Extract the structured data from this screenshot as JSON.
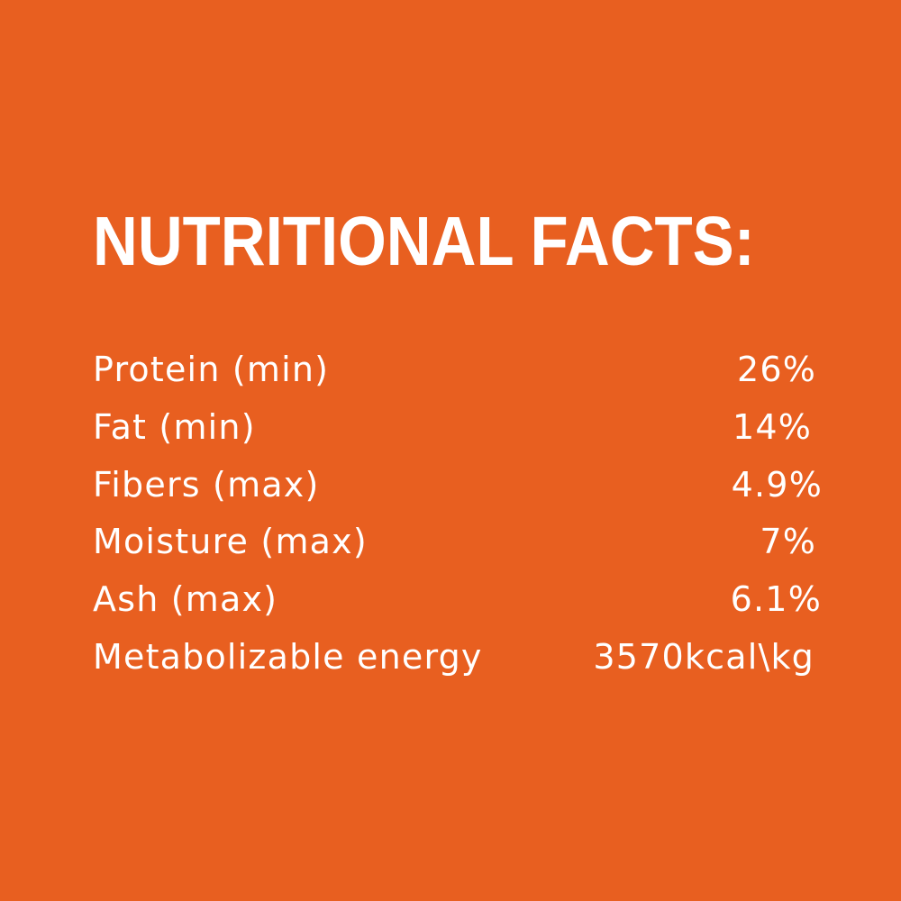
{
  "background_color": "#E85F20",
  "text_color": "#FFFFFF",
  "title": "NUTRITIONAL FACTS:",
  "rows": [
    {
      "label": "Protein (min)",
      "value": "26%"
    },
    {
      "label": "Fat (min)",
      "value": "14%"
    },
    {
      "label": "Fibers (max)",
      "value": "4.9%"
    },
    {
      "label": "Moisture (max)",
      "value": "7%"
    },
    {
      "label": "Ash (max)",
      "value": "6.1%"
    },
    {
      "label": "Metabolizable energy",
      "value": "3570kcal\\kg"
    }
  ]
}
